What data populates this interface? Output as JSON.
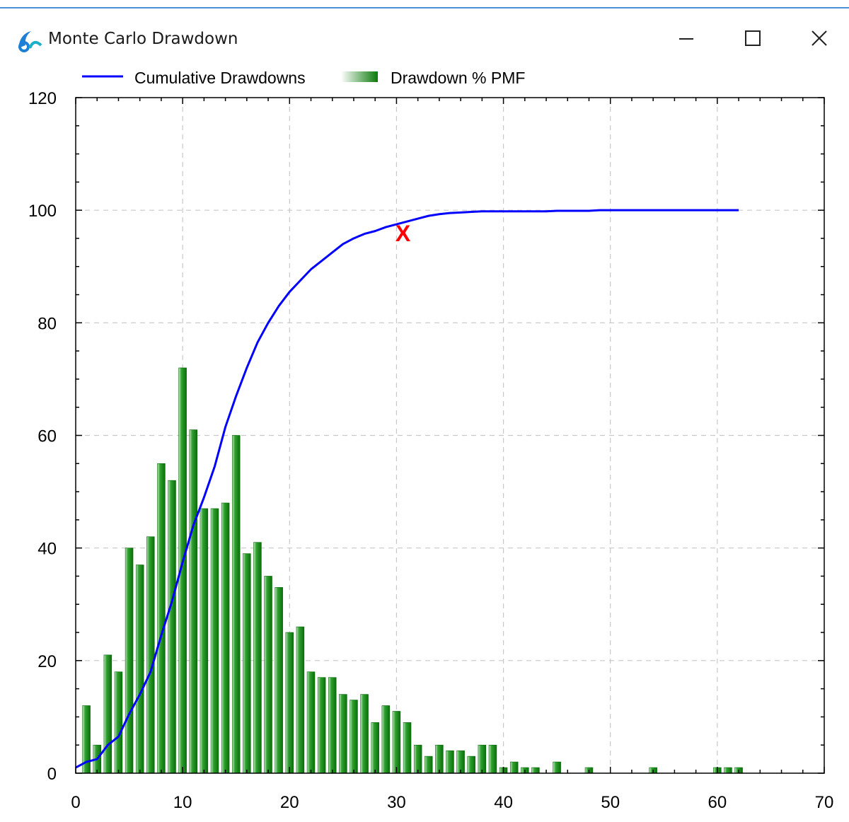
{
  "window": {
    "title": "Monte Carlo Drawdown",
    "app_icon": "app-logo-icon",
    "controls": [
      "minimize-icon",
      "maximize-icon",
      "close-icon"
    ]
  },
  "colors": {
    "line": "#0000ff",
    "bar": "#0a8a0a",
    "marker": "#ff0000",
    "grid": "#c8c8c8",
    "titlebar_accent": "#4a90d9"
  },
  "chart_data": {
    "type": "bar",
    "xlim": [
      0,
      70
    ],
    "ylim": [
      0,
      120
    ],
    "xticks": [
      0,
      10,
      20,
      30,
      40,
      50,
      60,
      70
    ],
    "yticks": [
      0,
      20,
      40,
      60,
      80,
      100,
      120
    ],
    "grid": true,
    "legend_position": "top-left",
    "series": [
      {
        "name": "Cumulative Drawdowns",
        "type": "line",
        "color": "#0000ff",
        "x": [
          0,
          1,
          2,
          3,
          4,
          5,
          6,
          7,
          8,
          9,
          10,
          11,
          12,
          13,
          14,
          15,
          16,
          17,
          18,
          19,
          20,
          21,
          22,
          23,
          24,
          25,
          26,
          27,
          28,
          29,
          30,
          31,
          32,
          33,
          34,
          35,
          36,
          37,
          38,
          39,
          40,
          41,
          42,
          43,
          44,
          45,
          46,
          47,
          48,
          49,
          50,
          51,
          52,
          53,
          54,
          55,
          56,
          57,
          58,
          59,
          60,
          61,
          62
        ],
        "y": [
          1,
          2,
          2.5,
          5,
          6.5,
          10.5,
          14,
          18,
          24.5,
          30.5,
          37.5,
          44,
          49,
          54.5,
          61.5,
          67,
          72,
          76.5,
          80,
          83,
          85.5,
          87.5,
          89.5,
          91,
          92.5,
          94,
          95,
          95.8,
          96.3,
          97,
          97.5,
          98,
          98.5,
          99,
          99.3,
          99.5,
          99.6,
          99.7,
          99.8,
          99.8,
          99.8,
          99.8,
          99.8,
          99.8,
          99.8,
          99.9,
          99.9,
          99.9,
          99.9,
          100,
          100,
          100,
          100,
          100,
          100,
          100,
          100,
          100,
          100,
          100,
          100,
          100,
          100
        ]
      },
      {
        "name": "Drawdown % PMF",
        "type": "bar",
        "color": "#0a8a0a",
        "x": [
          1,
          2,
          3,
          4,
          5,
          6,
          7,
          8,
          9,
          10,
          11,
          12,
          13,
          14,
          15,
          16,
          17,
          18,
          19,
          20,
          21,
          22,
          23,
          24,
          25,
          26,
          27,
          28,
          29,
          30,
          31,
          32,
          33,
          34,
          35,
          36,
          37,
          38,
          39,
          40,
          41,
          42,
          43,
          45,
          48,
          54,
          60,
          61,
          62
        ],
        "values": [
          12,
          5,
          21,
          18,
          40,
          37,
          42,
          55,
          52,
          72,
          61,
          47,
          47,
          48,
          60,
          39,
          41,
          35,
          33,
          25,
          26,
          18,
          17,
          17,
          14,
          13,
          14,
          9,
          12,
          11,
          9,
          5,
          3,
          5,
          4,
          4,
          3,
          5,
          5,
          1,
          2,
          1,
          1,
          2,
          1,
          1,
          1,
          1,
          1
        ]
      }
    ],
    "annotations": [
      {
        "label": "X",
        "x": 30.6,
        "y": 96,
        "color": "#ff0000"
      }
    ]
  }
}
